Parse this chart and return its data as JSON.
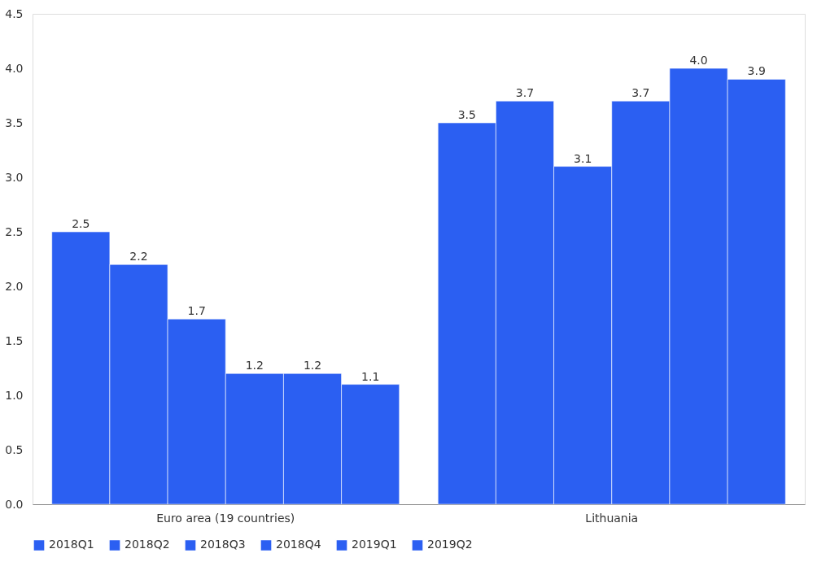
{
  "chart_data": {
    "type": "bar",
    "categories": [
      "Euro area (19 countries)",
      "Lithuania"
    ],
    "series": [
      {
        "name": "2018Q1",
        "color": "#2b5ff2",
        "values": [
          2.5,
          3.5
        ],
        "value_labels": [
          "2.5",
          "3.5"
        ]
      },
      {
        "name": "2018Q2",
        "color": "#2b5ff2",
        "values": [
          2.2,
          3.7
        ],
        "value_labels": [
          "2.2",
          "3.7"
        ]
      },
      {
        "name": "2018Q3",
        "color": "#2b5ff2",
        "values": [
          1.7,
          3.1
        ],
        "value_labels": [
          "1.7",
          "3.1"
        ]
      },
      {
        "name": "2018Q4",
        "color": "#2b5ff2",
        "values": [
          1.2,
          3.7
        ],
        "value_labels": [
          "1.2",
          "3.7"
        ]
      },
      {
        "name": "2019Q1",
        "color": "#2b5ff2",
        "values": [
          1.2,
          4.0
        ],
        "value_labels": [
          "1.2",
          "4.0"
        ]
      },
      {
        "name": "2019Q2",
        "color": "#2b5ff2",
        "values": [
          1.1,
          3.9
        ],
        "value_labels": [
          "1.1",
          "3.9"
        ]
      }
    ],
    "ylim": [
      0,
      4.5
    ],
    "yticks": [
      {
        "value": 0,
        "label": "0.0"
      },
      0.5,
      {
        "value": 1,
        "label": "1.0"
      },
      1.5,
      {
        "value": 2,
        "label": "2.0"
      },
      2.5,
      {
        "value": 3,
        "label": "3.0"
      },
      3.5,
      {
        "value": 4,
        "label": "4.0"
      },
      4.5
    ],
    "grid": false,
    "legend": "bottom"
  }
}
